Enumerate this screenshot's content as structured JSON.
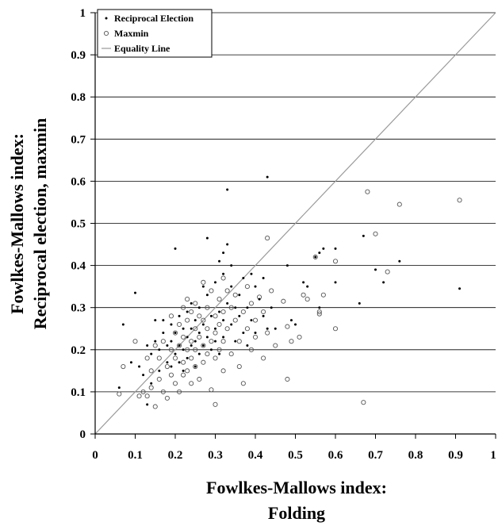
{
  "chart_data": {
    "type": "scatter",
    "title": "",
    "xlabel": [
      "Fowlkes-Mallows index:",
      "Folding"
    ],
    "ylabel": [
      "Fowlkes-Mallows index:",
      "Reciprocal election, maxmin"
    ],
    "xlim": [
      0,
      1
    ],
    "ylim": [
      0,
      1
    ],
    "xticks": [
      "0",
      "0.1",
      "0.2",
      "0.3",
      "0.4",
      "0.5",
      "0.6",
      "0.7",
      "0.8",
      "0.9",
      "1"
    ],
    "yticks": [
      "0",
      "0.1",
      "0.2",
      "0.3",
      "0.4",
      "0.5",
      "0.6",
      "0.7",
      "0.8",
      "0.9",
      "1"
    ],
    "grid": "horizontal",
    "legend_position": "top-left",
    "series": [
      {
        "name": "Reciprocal Election",
        "marker": "dot",
        "color": "#000000",
        "points": [
          [
            0.06,
            0.11
          ],
          [
            0.07,
            0.26
          ],
          [
            0.09,
            0.17
          ],
          [
            0.1,
            0.335
          ],
          [
            0.11,
            0.16
          ],
          [
            0.12,
            0.14
          ],
          [
            0.13,
            0.21
          ],
          [
            0.13,
            0.07
          ],
          [
            0.14,
            0.12
          ],
          [
            0.14,
            0.19
          ],
          [
            0.15,
            0.27
          ],
          [
            0.15,
            0.22
          ],
          [
            0.16,
            0.15
          ],
          [
            0.16,
            0.2
          ],
          [
            0.17,
            0.27
          ],
          [
            0.17,
            0.24
          ],
          [
            0.18,
            0.17
          ],
          [
            0.18,
            0.21
          ],
          [
            0.19,
            0.26
          ],
          [
            0.19,
            0.22
          ],
          [
            0.19,
            0.16
          ],
          [
            0.2,
            0.44
          ],
          [
            0.2,
            0.19
          ],
          [
            0.2,
            0.24
          ],
          [
            0.21,
            0.28
          ],
          [
            0.21,
            0.21
          ],
          [
            0.21,
            0.17
          ],
          [
            0.22,
            0.25
          ],
          [
            0.22,
            0.2
          ],
          [
            0.22,
            0.15
          ],
          [
            0.23,
            0.29
          ],
          [
            0.23,
            0.23
          ],
          [
            0.23,
            0.18
          ],
          [
            0.24,
            0.31
          ],
          [
            0.24,
            0.25
          ],
          [
            0.24,
            0.21
          ],
          [
            0.25,
            0.16
          ],
          [
            0.25,
            0.27
          ],
          [
            0.25,
            0.22
          ],
          [
            0.26,
            0.3
          ],
          [
            0.26,
            0.24
          ],
          [
            0.26,
            0.19
          ],
          [
            0.27,
            0.35
          ],
          [
            0.27,
            0.26
          ],
          [
            0.27,
            0.21
          ],
          [
            0.28,
            0.465
          ],
          [
            0.28,
            0.33
          ],
          [
            0.28,
            0.23
          ],
          [
            0.29,
            0.28
          ],
          [
            0.29,
            0.2
          ],
          [
            0.3,
            0.36
          ],
          [
            0.3,
            0.25
          ],
          [
            0.3,
            0.22
          ],
          [
            0.31,
            0.41
          ],
          [
            0.31,
            0.29
          ],
          [
            0.31,
            0.19
          ],
          [
            0.32,
            0.43
          ],
          [
            0.32,
            0.38
          ],
          [
            0.32,
            0.27
          ],
          [
            0.32,
            0.23
          ],
          [
            0.33,
            0.58
          ],
          [
            0.33,
            0.45
          ],
          [
            0.33,
            0.31
          ],
          [
            0.34,
            0.4
          ],
          [
            0.34,
            0.35
          ],
          [
            0.34,
            0.26
          ],
          [
            0.35,
            0.3
          ],
          [
            0.35,
            0.22
          ],
          [
            0.36,
            0.33
          ],
          [
            0.36,
            0.28
          ],
          [
            0.37,
            0.37
          ],
          [
            0.37,
            0.24
          ],
          [
            0.38,
            0.3
          ],
          [
            0.38,
            0.21
          ],
          [
            0.39,
            0.38
          ],
          [
            0.39,
            0.27
          ],
          [
            0.4,
            0.35
          ],
          [
            0.4,
            0.24
          ],
          [
            0.41,
            0.32
          ],
          [
            0.42,
            0.28
          ],
          [
            0.42,
            0.37
          ],
          [
            0.43,
            0.61
          ],
          [
            0.43,
            0.25
          ],
          [
            0.44,
            0.3
          ],
          [
            0.45,
            0.25
          ],
          [
            0.48,
            0.4
          ],
          [
            0.49,
            0.27
          ],
          [
            0.5,
            0.26
          ],
          [
            0.52,
            0.36
          ],
          [
            0.53,
            0.35
          ],
          [
            0.55,
            0.42
          ],
          [
            0.56,
            0.43
          ],
          [
            0.56,
            0.3
          ],
          [
            0.57,
            0.44
          ],
          [
            0.6,
            0.44
          ],
          [
            0.6,
            0.36
          ],
          [
            0.66,
            0.31
          ],
          [
            0.67,
            0.47
          ],
          [
            0.7,
            0.39
          ],
          [
            0.72,
            0.36
          ],
          [
            0.76,
            0.41
          ],
          [
            0.91,
            0.345
          ]
        ]
      },
      {
        "name": "Maxmin",
        "marker": "open-circle",
        "color": "#000000",
        "points": [
          [
            0.06,
            0.095
          ],
          [
            0.07,
            0.16
          ],
          [
            0.1,
            0.22
          ],
          [
            0.11,
            0.09
          ],
          [
            0.12,
            0.1
          ],
          [
            0.13,
            0.09
          ],
          [
            0.13,
            0.18
          ],
          [
            0.14,
            0.11
          ],
          [
            0.14,
            0.15
          ],
          [
            0.15,
            0.21
          ],
          [
            0.15,
            0.065
          ],
          [
            0.16,
            0.13
          ],
          [
            0.16,
            0.18
          ],
          [
            0.17,
            0.22
          ],
          [
            0.17,
            0.1
          ],
          [
            0.18,
            0.16
          ],
          [
            0.18,
            0.085
          ],
          [
            0.19,
            0.28
          ],
          [
            0.19,
            0.2
          ],
          [
            0.19,
            0.14
          ],
          [
            0.2,
            0.24
          ],
          [
            0.2,
            0.18
          ],
          [
            0.2,
            0.12
          ],
          [
            0.21,
            0.26
          ],
          [
            0.21,
            0.21
          ],
          [
            0.21,
            0.1
          ],
          [
            0.22,
            0.3
          ],
          [
            0.22,
            0.23
          ],
          [
            0.22,
            0.17
          ],
          [
            0.22,
            0.14
          ],
          [
            0.23,
            0.32
          ],
          [
            0.23,
            0.27
          ],
          [
            0.23,
            0.2
          ],
          [
            0.23,
            0.15
          ],
          [
            0.24,
            0.29
          ],
          [
            0.24,
            0.22
          ],
          [
            0.24,
            0.18
          ],
          [
            0.24,
            0.12
          ],
          [
            0.25,
            0.31
          ],
          [
            0.25,
            0.25
          ],
          [
            0.25,
            0.2
          ],
          [
            0.25,
            0.16
          ],
          [
            0.26,
            0.28
          ],
          [
            0.26,
            0.23
          ],
          [
            0.26,
            0.13
          ],
          [
            0.27,
            0.36
          ],
          [
            0.27,
            0.27
          ],
          [
            0.27,
            0.21
          ],
          [
            0.27,
            0.17
          ],
          [
            0.28,
            0.3
          ],
          [
            0.28,
            0.25
          ],
          [
            0.28,
            0.19
          ],
          [
            0.29,
            0.105
          ],
          [
            0.29,
            0.34
          ],
          [
            0.29,
            0.22
          ],
          [
            0.3,
            0.07
          ],
          [
            0.3,
            0.28
          ],
          [
            0.3,
            0.24
          ],
          [
            0.3,
            0.18
          ],
          [
            0.31,
            0.32
          ],
          [
            0.31,
            0.26
          ],
          [
            0.31,
            0.2
          ],
          [
            0.32,
            0.37
          ],
          [
            0.32,
            0.29
          ],
          [
            0.32,
            0.22
          ],
          [
            0.32,
            0.15
          ],
          [
            0.33,
            0.34
          ],
          [
            0.33,
            0.25
          ],
          [
            0.34,
            0.3
          ],
          [
            0.34,
            0.19
          ],
          [
            0.35,
            0.27
          ],
          [
            0.35,
            0.33
          ],
          [
            0.36,
            0.22
          ],
          [
            0.36,
            0.16
          ],
          [
            0.37,
            0.12
          ],
          [
            0.37,
            0.29
          ],
          [
            0.38,
            0.25
          ],
          [
            0.38,
            0.35
          ],
          [
            0.39,
            0.2
          ],
          [
            0.39,
            0.31
          ],
          [
            0.4,
            0.27
          ],
          [
            0.4,
            0.23
          ],
          [
            0.41,
            0.325
          ],
          [
            0.42,
            0.29
          ],
          [
            0.42,
            0.18
          ],
          [
            0.43,
            0.465
          ],
          [
            0.43,
            0.24
          ],
          [
            0.44,
            0.34
          ],
          [
            0.45,
            0.21
          ],
          [
            0.47,
            0.315
          ],
          [
            0.48,
            0.255
          ],
          [
            0.48,
            0.13
          ],
          [
            0.49,
            0.22
          ],
          [
            0.51,
            0.23
          ],
          [
            0.52,
            0.33
          ],
          [
            0.53,
            0.32
          ],
          [
            0.55,
            0.42
          ],
          [
            0.56,
            0.29
          ],
          [
            0.56,
            0.285
          ],
          [
            0.57,
            0.33
          ],
          [
            0.6,
            0.41
          ],
          [
            0.6,
            0.25
          ],
          [
            0.67,
            0.075
          ],
          [
            0.68,
            0.575
          ],
          [
            0.7,
            0.475
          ],
          [
            0.73,
            0.385
          ],
          [
            0.76,
            0.545
          ],
          [
            0.91,
            0.555
          ]
        ]
      },
      {
        "name": "Equality Line",
        "marker": "line",
        "color": "#9a9a9a",
        "points": [
          [
            0,
            0
          ],
          [
            1,
            1
          ]
        ]
      }
    ]
  }
}
